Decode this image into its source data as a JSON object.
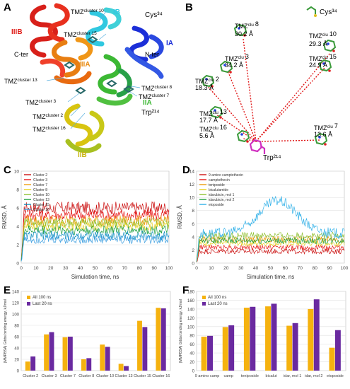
{
  "panels": {
    "A": {
      "label": "A",
      "domains": [
        {
          "text": "IIIB",
          "color": "#e0201b"
        },
        {
          "text": "IB",
          "color": "#30c8e0"
        },
        {
          "text": "IA",
          "color": "#1c2fd8"
        },
        {
          "text": "IIIA",
          "color": "#e88a10"
        },
        {
          "text": "IIA",
          "color": "#3cb834"
        },
        {
          "text": "IIB",
          "color": "#d8c410"
        }
      ],
      "annotations": {
        "cys": "Cys³⁴",
        "cter": "C-ter",
        "nter": "N-ter",
        "trp": "Trp²¹⁴",
        "cl10": "cluster 10",
        "cl15": "cluster 15",
        "cl13": "cluster 13",
        "cl8": "cluster 8",
        "cl7": "cluster 7",
        "cl3": "cluster 3",
        "cl2": "cluster 2",
        "cl16": "cluster 16",
        "tmz": "TMZ"
      }
    },
    "B": {
      "label": "B",
      "cys": "Cys³⁴",
      "trp": "Trp²¹⁴",
      "tmz": "TMZ",
      "sup": "clu",
      "sites": [
        {
          "num": "8",
          "dist": "30.2 Å"
        },
        {
          "num": "10",
          "dist": "29.3 Å"
        },
        {
          "num": "3",
          "dist": "34.2 Å"
        },
        {
          "num": "15",
          "dist": "24.9 Å"
        },
        {
          "num": "2",
          "dist": "18.3 Å"
        },
        {
          "num": "13",
          "dist": "17.7 Å"
        },
        {
          "num": "7",
          "dist": "13.6 Å"
        },
        {
          "num": "16",
          "dist": "5.6 Å"
        }
      ]
    }
  },
  "chart_data": [
    {
      "panel": "C",
      "type": "line",
      "xlabel": "Simulation time, ns",
      "ylabel": "RMSD, Å",
      "xlim": [
        0,
        100
      ],
      "ylim": [
        0,
        10
      ],
      "xticks": [
        0,
        10,
        20,
        30,
        40,
        50,
        60,
        70,
        80,
        90,
        100
      ],
      "yticks": [
        0,
        2,
        4,
        6,
        8,
        10
      ],
      "legend_position": "top-left",
      "grid": true,
      "series": [
        {
          "name": "Cluster 2",
          "color": "#cc1010",
          "base": 6.0,
          "noise": 0.7
        },
        {
          "name": "Cluster 3",
          "color": "#e81a1a",
          "base": 5.2,
          "noise": 0.6
        },
        {
          "name": "Cluster 7",
          "color": "#f0a010",
          "base": 4.6,
          "noise": 0.6
        },
        {
          "name": "Cluster 8",
          "color": "#e6d020",
          "base": 4.0,
          "noise": 0.5
        },
        {
          "name": "Cluster 10",
          "color": "#90c030",
          "base": 4.4,
          "noise": 0.5
        },
        {
          "name": "Cluster 13",
          "color": "#20a040",
          "base": 3.6,
          "noise": 0.5
        },
        {
          "name": "Cluster 15",
          "color": "#1090c0",
          "base": 3.0,
          "noise": 0.5
        },
        {
          "name": "Cluster 16",
          "color": "#40a0e0",
          "base": 2.6,
          "noise": 0.5
        }
      ]
    },
    {
      "panel": "D",
      "type": "line",
      "xlabel": "Simulation time, ns",
      "ylabel": "RMSD, Å",
      "xlim": [
        0,
        100
      ],
      "ylim": [
        0,
        14
      ],
      "xticks": [
        0,
        10,
        20,
        30,
        40,
        50,
        60,
        70,
        80,
        90,
        100
      ],
      "yticks": [
        0,
        2,
        4,
        6,
        8,
        10,
        12,
        14
      ],
      "legend_position": "top-left",
      "grid": true,
      "series": [
        {
          "name": "9 amino camptothecin",
          "color": "#cc1010",
          "base": 1.8,
          "noise": 0.4
        },
        {
          "name": "camptothecin",
          "color": "#e81a1a",
          "base": 2.4,
          "noise": 0.4
        },
        {
          "name": "teniposide",
          "color": "#f0a010",
          "base": 3.6,
          "noise": 0.5
        },
        {
          "name": "bicalutamide",
          "color": "#e6d020",
          "base": 3.0,
          "noise": 0.4
        },
        {
          "name": "idarubicin, mol 1",
          "color": "#90c030",
          "base": 4.2,
          "noise": 0.5
        },
        {
          "name": "idarubicin, mol 2",
          "color": "#20a040",
          "base": 3.4,
          "noise": 0.5
        },
        {
          "name": "etoposide",
          "color": "#30b0e8",
          "base": 4.5,
          "noise": 0.8,
          "bump": 5.0
        }
      ]
    },
    {
      "panel": "E",
      "type": "bar",
      "ylabel": "|MMPBSA| Gibbs binding energy, kJ/mol",
      "categories": [
        "Cluster 2",
        "Cluster 3",
        "Cluster 7",
        "Cluster 8",
        "Cluster 10",
        "Cluster 13",
        "Cluster 15",
        "Cluster 16"
      ],
      "ylim": [
        0,
        140
      ],
      "yticks": [
        0,
        20,
        40,
        60,
        80,
        100,
        120,
        140
      ],
      "legend_position": "top-left",
      "grid": true,
      "series": [
        {
          "name": "All 100 ns",
          "color": "#f5b20f",
          "values": [
            16,
            64,
            59,
            20,
            46,
            12,
            88,
            111
          ]
        },
        {
          "name": "Last 20 ns",
          "color": "#6a2aa0",
          "values": [
            25,
            68,
            60,
            22,
            42,
            8,
            77,
            110
          ]
        }
      ]
    },
    {
      "panel": "F",
      "type": "bar",
      "ylabel": "|MMPBSA| Gibbs binding energy, kJ/mol",
      "categories": [
        "9 amino camp",
        "camp",
        "teniposide",
        "bicalut",
        "idar, mol 1",
        "idar, mol 2",
        "etoposide"
      ],
      "ylim": [
        0,
        180
      ],
      "yticks": [
        0,
        20,
        40,
        60,
        80,
        100,
        120,
        140,
        160,
        180
      ],
      "legend_position": "top-left",
      "grid": true,
      "series": [
        {
          "name": "All 100 ns",
          "color": "#f5b20f",
          "values": [
            77,
            99,
            143,
            146,
            102,
            140,
            52
          ]
        },
        {
          "name": "Last 20 ns",
          "color": "#6a2aa0",
          "values": [
            79,
            103,
            145,
            152,
            108,
            162,
            92
          ]
        }
      ]
    }
  ]
}
